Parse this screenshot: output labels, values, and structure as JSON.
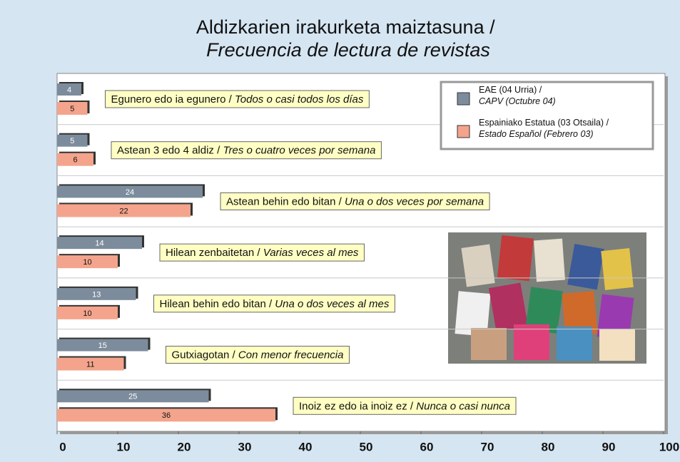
{
  "chart_data": {
    "type": "bar",
    "orientation": "horizontal",
    "title": "Aldizkarien irakurketa maiztasuna / Frecuencia de lectura de revistas",
    "categories": [
      "Egunero edo ia egunero / Todos o casi todos los días",
      "Astean 3 edo 4 aldiz / Tres o cuatro veces por semana",
      "Astean behin edo bitan / Una o dos veces por semana",
      "Hilean zenbaitetan / Varias veces al mes",
      "Hilean behin edo bitan / Una o dos veces al mes",
      "Gutxiagotan / Con menor frecuencia",
      "Inoiz ez edo ia inoiz ez / Nunca o casi nunca"
    ],
    "series": [
      {
        "name": "EAE (04 Urria) / CAPV (Octubre 04)",
        "color": "#7c8c9c",
        "values": [
          4,
          5,
          24,
          14,
          13,
          15,
          25
        ]
      },
      {
        "name": "Espainiako Estatua (03 Otsaila) / Estado Español (Febrero 03)",
        "color": "#f4a48c",
        "values": [
          5,
          6,
          22,
          10,
          10,
          11,
          36
        ]
      }
    ],
    "xlim": [
      0,
      100
    ],
    "xticks": [
      0,
      10,
      20,
      30,
      40,
      50,
      60,
      70,
      80,
      90,
      100
    ],
    "legend": "top-right"
  }
}
